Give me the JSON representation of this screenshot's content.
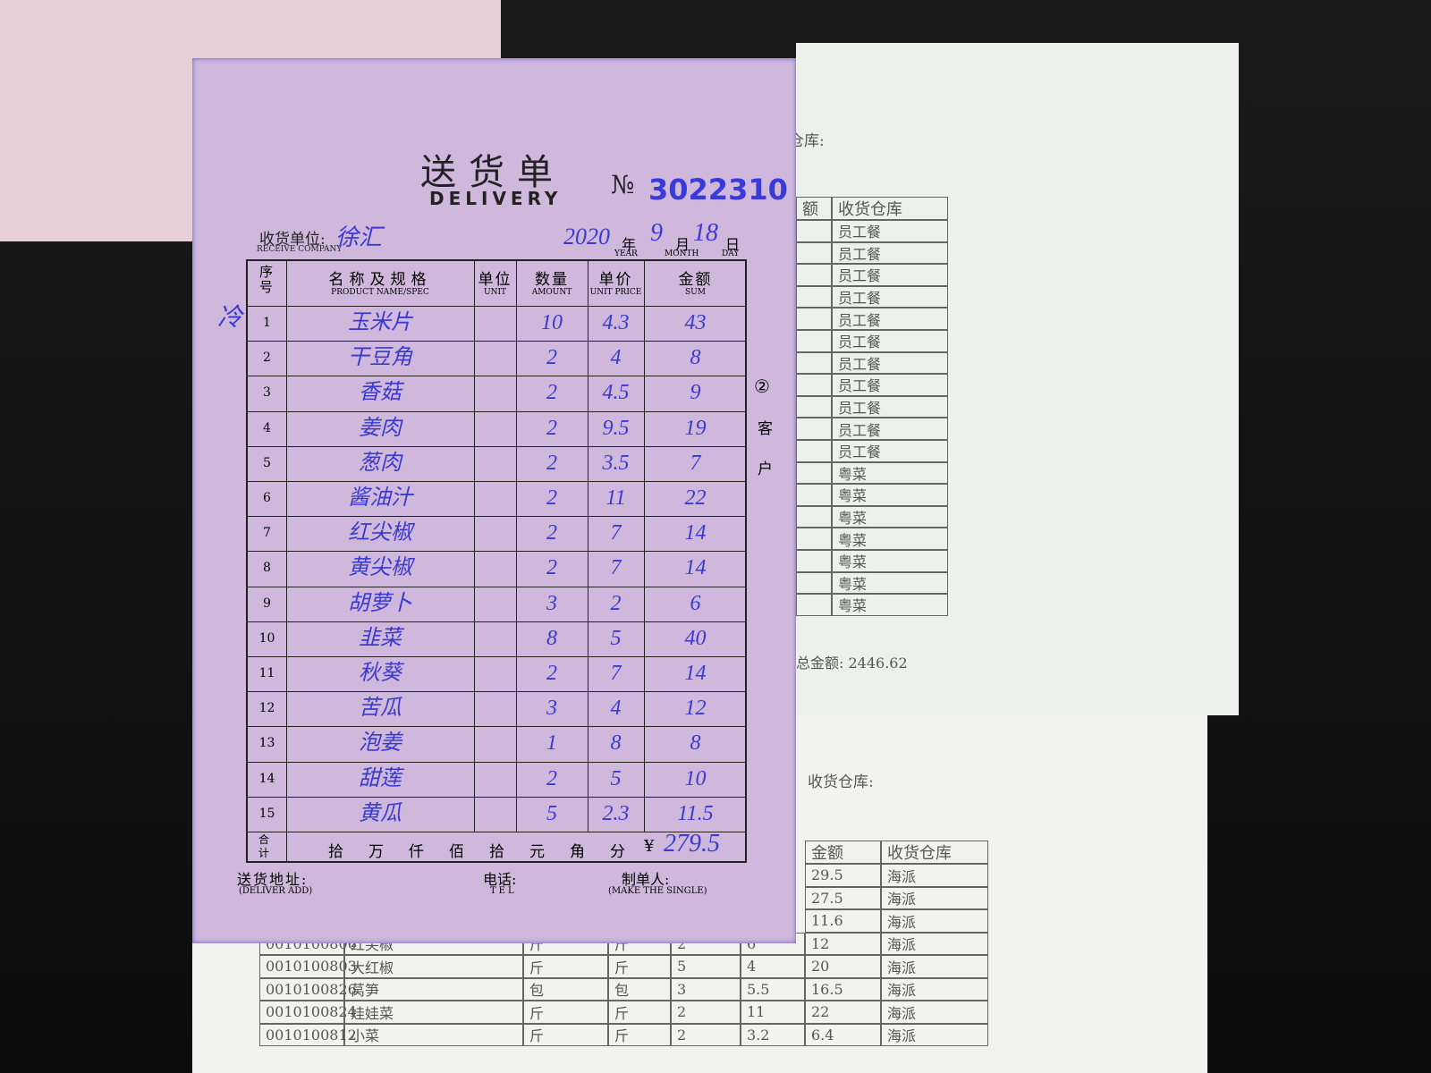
{
  "slip": {
    "title": "送货单",
    "subtitle": "DELIVERY",
    "number_label": "№",
    "number": "3022310",
    "company_label": "收货单位:",
    "company_label_en": "RECEIVE COMPANY",
    "company": "徐汇",
    "date": {
      "year": "2020",
      "year_label": "年",
      "month": "9",
      "month_label": "月",
      "day": "18",
      "day_label": "日",
      "year_en": "YEAR",
      "month_en": "MONTH",
      "day_en": "DAY"
    },
    "margin_note": "冷",
    "copy_mark": "②",
    "copy_label": [
      "客",
      "户"
    ],
    "table": {
      "headers": [
        {
          "zh": "序号"
        },
        {
          "zh": "名称及规格",
          "en": "PRODUCT NAME/SPEC"
        },
        {
          "zh": "单位",
          "en": "UNIT"
        },
        {
          "zh": "数量",
          "en": "AMOUNT"
        },
        {
          "zh": "单价",
          "en": "UNIT PRICE"
        },
        {
          "zh": "金额",
          "en": "SUM"
        }
      ],
      "rows": [
        [
          "1",
          "玉米片",
          "10",
          "4.3",
          "43"
        ],
        [
          "2",
          "干豆角",
          "2",
          "4",
          "8"
        ],
        [
          "3",
          "香菇",
          "2",
          "4.5",
          "9"
        ],
        [
          "4",
          "姜肉",
          "2",
          "9.5",
          "19"
        ],
        [
          "5",
          "葱肉",
          "2",
          "3.5",
          "7"
        ],
        [
          "6",
          "酱油汁",
          "2",
          "11",
          "22"
        ],
        [
          "7",
          "红尖椒",
          "2",
          "7",
          "14"
        ],
        [
          "8",
          "黄尖椒",
          "2",
          "7",
          "14"
        ],
        [
          "9",
          "胡萝卜",
          "3",
          "2",
          "6"
        ],
        [
          "10",
          "韭菜",
          "8",
          "5",
          "40"
        ],
        [
          "11",
          "秋葵",
          "2",
          "7",
          "14"
        ],
        [
          "12",
          "苦瓜",
          "3",
          "4",
          "12"
        ],
        [
          "13",
          "泡姜",
          "1",
          "8",
          "8"
        ],
        [
          "14",
          "甜莲",
          "2",
          "5",
          "10"
        ],
        [
          "15",
          "黄瓜",
          "5",
          "2.3",
          "11.5"
        ]
      ],
      "total_label": "合计",
      "total_units": [
        "拾",
        "万",
        "仟",
        "佰",
        "拾",
        "元",
        "角",
        "分"
      ],
      "currency": "¥",
      "total": "279.5"
    },
    "footer": {
      "address_label": "送货地址:",
      "address_en": "(DELIVER ADD)",
      "tel_label": "电话:",
      "tel_en": "TEL",
      "maker_label": "制单人:",
      "maker_en": "(MAKE THE SINGLE)"
    }
  },
  "sheet_top": {
    "warehouse_label": "仓库:",
    "headers": [
      "额",
      "收货仓库"
    ],
    "rows": [
      "员工餐",
      "员工餐",
      "员工餐",
      "员工餐",
      "员工餐",
      "员工餐",
      "员工餐",
      "员工餐",
      "员工餐",
      "员工餐",
      "员工餐",
      "粤菜",
      "粤菜",
      "粤菜",
      "粤菜",
      "粤菜",
      "粤菜",
      "粤菜"
    ],
    "total": "总金额:  2446.62"
  },
  "sheet_bottom": {
    "warehouse_label": "收货仓库:",
    "headers": [
      "金额",
      "收货仓库"
    ],
    "rows": [
      [
        "29.5",
        "海派"
      ],
      [
        "27.5",
        "海派"
      ],
      [
        "11.6",
        "海派"
      ],
      [
        "0010100806",
        "红尖椒",
        "斤",
        "斤",
        "2",
        "6",
        "12",
        "海派"
      ],
      [
        "0010100803",
        "大红椒",
        "斤",
        "斤",
        "5",
        "4",
        "20",
        "海派"
      ],
      [
        "0010100826",
        "莴笋",
        "包",
        "包",
        "3",
        "5.5",
        "16.5",
        "海派"
      ],
      [
        "0010100824",
        "娃娃菜",
        "斤",
        "斤",
        "2",
        "11",
        "22",
        "海派"
      ],
      [
        "0010100812",
        "小菜",
        "斤",
        "斤",
        "2",
        "3.2",
        "6.4",
        "海派"
      ]
    ]
  }
}
